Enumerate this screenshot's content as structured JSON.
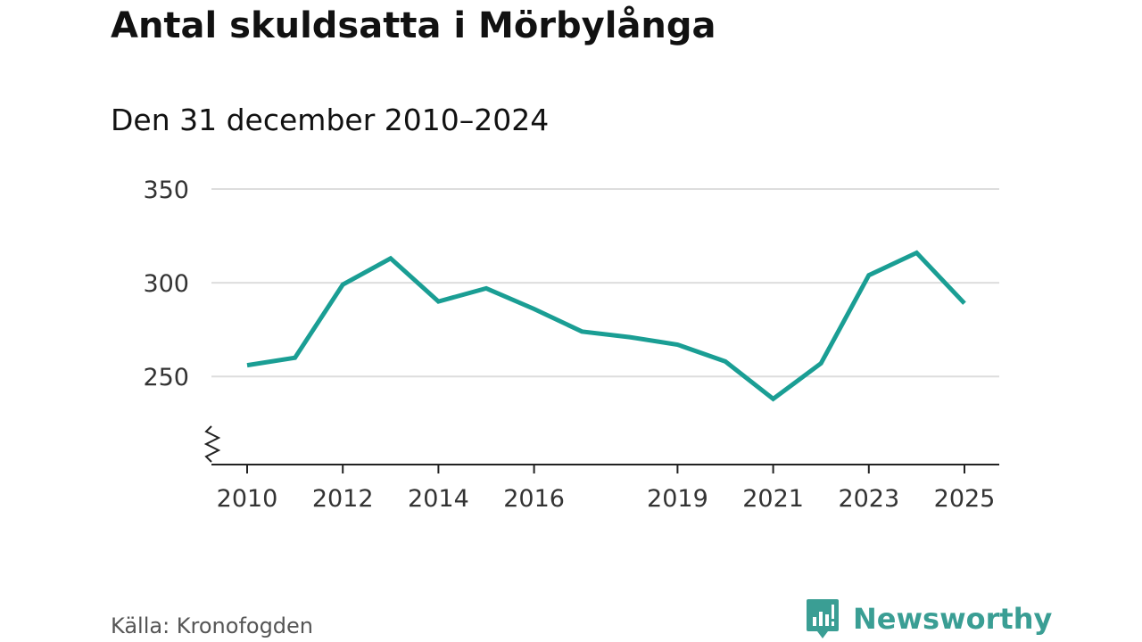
{
  "chart_data": {
    "type": "line",
    "title": "Antal skuldsatta i Mörbylånga",
    "subtitle": "Den 31 december 2010–2024",
    "xlabel": "",
    "ylabel": "",
    "x": [
      2010,
      2011,
      2012,
      2013,
      2014,
      2015,
      2016,
      2017,
      2018,
      2019,
      2020,
      2021,
      2022,
      2023,
      2024,
      2025
    ],
    "series": [
      {
        "name": "Antal skuldsatta",
        "color": "#1a9e94",
        "values": [
          256,
          260,
          299,
          313,
          290,
          297,
          286,
          274,
          271,
          267,
          258,
          238,
          257,
          304,
          316,
          289
        ]
      }
    ],
    "ylim": [
      203,
      350
    ],
    "xlim": [
      2010,
      2025
    ],
    "yticks": [
      250,
      300,
      350
    ],
    "ytick_labels": [
      "250",
      "300",
      "350"
    ],
    "xticks": [
      2010,
      2012,
      2014,
      2016,
      2019,
      2021,
      2023,
      2025
    ],
    "xtick_labels": [
      "2010",
      "2012",
      "2014",
      "2016",
      "2019",
      "2021",
      "2023",
      "2025"
    ],
    "axis_break": true,
    "grid": true,
    "gridline_color": "#dddddd"
  },
  "footer": {
    "source": "Källa: Kronofogden",
    "brand": "Newsworthy",
    "brand_icon": "newsworthy-logo-icon",
    "brand_color": "#3a9e94"
  }
}
